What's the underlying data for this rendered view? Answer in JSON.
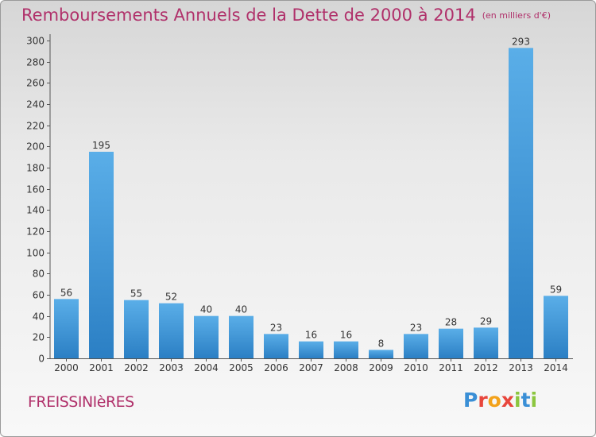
{
  "title": "Remboursements Annuels de la Dette de 2000 à 2014",
  "unit": "(en milliers d'€)",
  "commune": "FREISSINIèRES",
  "logo": {
    "letters": [
      {
        "char": "P",
        "color": "#3a8fd6"
      },
      {
        "char": "r",
        "color": "#e8463c"
      },
      {
        "char": "o",
        "color": "#f3a21b"
      },
      {
        "char": "x",
        "color": "#e8463c"
      },
      {
        "char": "i",
        "color": "#8cc63f"
      },
      {
        "char": "t",
        "color": "#3a8fd6"
      },
      {
        "char": "i",
        "color": "#8cc63f"
      }
    ]
  },
  "chart_data": {
    "type": "bar",
    "categories": [
      "2000",
      "2001",
      "2002",
      "2003",
      "2004",
      "2005",
      "2006",
      "2007",
      "2008",
      "2009",
      "2010",
      "2011",
      "2012",
      "2013",
      "2014"
    ],
    "values": [
      56,
      195,
      55,
      52,
      40,
      40,
      23,
      16,
      16,
      8,
      23,
      28,
      29,
      293,
      59
    ],
    "ylim": [
      0,
      300
    ],
    "yticks": [
      0,
      20,
      40,
      60,
      80,
      100,
      120,
      140,
      160,
      180,
      200,
      220,
      240,
      260,
      280,
      300
    ],
    "grid": false,
    "bar_color_top": "#5aaee8",
    "bar_color_bottom": "#2b7fc4"
  }
}
